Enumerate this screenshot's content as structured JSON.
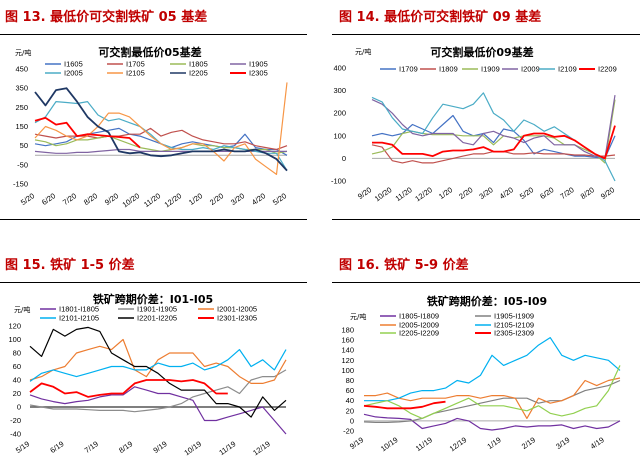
{
  "figures": [
    {
      "label": "图 13. 最低价可交割铁矿 05 基差"
    },
    {
      "label": "图 14. 最低价可交割铁矿 09 基差"
    },
    {
      "label": "图 15. 铁矿 1-5 价差"
    },
    {
      "label": "图 16. 铁矿 5-9 价差"
    }
  ],
  "chart_data": [
    {
      "type": "line",
      "title": "可交割最低价05基差",
      "ylabel": "元/吨",
      "ylim": [
        -150,
        450
      ],
      "yticks": [
        450,
        350,
        250,
        150,
        50,
        -50,
        -150
      ],
      "xticks": [
        "5/20",
        "6/20",
        "7/20",
        "8/20",
        "9/20",
        "10/20",
        "11/20",
        "12/20",
        "1/20",
        "2/20",
        "3/20",
        "4/20",
        "5/20"
      ],
      "grid": false,
      "legend": "top",
      "series": [
        {
          "name": "I1605",
          "color": "#4472c4",
          "values": [
            60,
            50,
            60,
            70,
            100,
            110,
            120,
            130,
            140,
            110,
            100,
            80,
            60,
            40,
            60,
            70,
            60,
            50,
            40,
            50,
            110,
            40,
            30,
            30,
            0
          ]
        },
        {
          "name": "I1705",
          "color": "#c0504d",
          "values": [
            110,
            100,
            90,
            100,
            100,
            100,
            90,
            100,
            100,
            110,
            110,
            140,
            100,
            120,
            130,
            100,
            80,
            70,
            60,
            60,
            70,
            50,
            40,
            30,
            50
          ]
        },
        {
          "name": "I1805",
          "color": "#9bbb59",
          "values": [
            80,
            70,
            50,
            60,
            80,
            80,
            90,
            100,
            80,
            60,
            40,
            30,
            20,
            30,
            40,
            60,
            50,
            50,
            40,
            40,
            30,
            30,
            30,
            10,
            20
          ]
        },
        {
          "name": "I1905",
          "color": "#8064a2",
          "values": [
            20,
            15,
            10,
            10,
            15,
            15,
            20,
            25,
            30,
            30,
            20,
            20,
            20,
            20,
            20,
            20,
            20,
            20,
            20,
            20,
            20,
            20,
            20,
            20,
            20
          ]
        },
        {
          "name": "I2005",
          "color": "#4bacc6",
          "values": [
            170,
            200,
            280,
            275,
            270,
            280,
            210,
            180,
            190,
            170,
            150,
            110,
            60,
            40,
            30,
            30,
            40,
            30,
            50,
            40,
            30,
            20,
            10,
            10,
            -80
          ]
        },
        {
          "name": "I2105",
          "color": "#f79646",
          "values": [
            90,
            150,
            130,
            100,
            80,
            100,
            150,
            220,
            220,
            200,
            150,
            100,
            60,
            30,
            40,
            60,
            60,
            20,
            -30,
            40,
            60,
            -20,
            -60,
            -100,
            380
          ]
        },
        {
          "name": "I2205",
          "color": "#1f3864",
          "values": [
            330,
            260,
            340,
            350,
            280,
            200,
            150,
            120,
            20,
            10,
            15,
            0,
            -5,
            0,
            10,
            20,
            20,
            20,
            30,
            20,
            20,
            30,
            10,
            -20,
            -80
          ]
        },
        {
          "name": "I2305",
          "color": "#ff0000",
          "values": [
            180,
            195,
            160,
            170,
            100,
            110,
            105,
            100,
            95,
            90,
            40,
            null,
            null,
            null,
            null,
            null,
            null,
            null,
            null,
            null,
            null,
            null,
            null,
            null,
            null
          ]
        }
      ]
    },
    {
      "type": "line",
      "title": "可交割最低价09基差",
      "ylabel": "元/吨",
      "ylim": [
        -100,
        400
      ],
      "yticks": [
        400,
        300,
        200,
        100,
        0,
        -100
      ],
      "xticks": [
        "9/20",
        "10/20",
        "11/20",
        "12/20",
        "1/20",
        "2/20",
        "3/20",
        "4/20",
        "5/20",
        "6/20",
        "7/20",
        "8/20",
        "9/20"
      ],
      "grid": false,
      "legend": "top",
      "series": [
        {
          "name": "I1709",
          "color": "#4472c4",
          "values": [
            100,
            110,
            100,
            110,
            150,
            130,
            110,
            150,
            190,
            120,
            100,
            110,
            70,
            130,
            120,
            80,
            20,
            40,
            30,
            20,
            10,
            10,
            5,
            0,
            100
          ]
        },
        {
          "name": "I1809",
          "color": "#c0504d",
          "values": [
            60,
            50,
            -10,
            -20,
            -10,
            -20,
            -20,
            -10,
            0,
            10,
            20,
            20,
            30,
            30,
            20,
            20,
            25,
            20,
            20,
            20,
            15,
            15,
            10,
            10,
            15
          ]
        },
        {
          "name": "I1909",
          "color": "#9bbb59",
          "values": [
            20,
            30,
            50,
            110,
            120,
            110,
            105,
            105,
            105,
            100,
            100,
            100,
            60,
            100,
            90,
            100,
            100,
            100,
            90,
            60,
            60,
            40,
            20,
            -20,
            260
          ]
        },
        {
          "name": "I2009",
          "color": "#8064a2",
          "values": [
            260,
            240,
            200,
            150,
            110,
            100,
            110,
            110,
            110,
            70,
            60,
            110,
            120,
            100,
            90,
            70,
            90,
            100,
            60,
            60,
            60,
            30,
            10,
            0,
            280
          ]
        },
        {
          "name": "I2109",
          "color": "#4bacc6",
          "values": [
            270,
            250,
            180,
            130,
            120,
            110,
            180,
            240,
            230,
            220,
            240,
            290,
            200,
            170,
            120,
            170,
            150,
            120,
            140,
            110,
            80,
            50,
            20,
            -10,
            -100
          ]
        },
        {
          "name": "I2209",
          "color": "#ff0000",
          "values": [
            70,
            70,
            60,
            20,
            20,
            20,
            10,
            30,
            35,
            35,
            40,
            50,
            30,
            30,
            40,
            100,
            110,
            110,
            95,
            100,
            80,
            50,
            20,
            0,
            145
          ]
        }
      ]
    },
    {
      "type": "line",
      "title": "铁矿跨期价差：I01-I05",
      "ylabel": "元/吨",
      "ylim": [
        -40,
        120
      ],
      "yticks": [
        120,
        100,
        80,
        60,
        40,
        20,
        0,
        -20,
        -40
      ],
      "xticks": [
        "5/19",
        "6/19",
        "7/19",
        "8/19",
        "9/19",
        "10/19",
        "11/19",
        "12/19"
      ],
      "grid": false,
      "legend": "top",
      "series": [
        {
          "name": "I1801-I1805",
          "color": "#7030a0",
          "values": [
            18,
            12,
            8,
            5,
            8,
            10,
            15,
            18,
            18,
            30,
            25,
            20,
            20,
            15,
            10,
            -20,
            -20,
            -15,
            -10,
            -5,
            0,
            -20,
            -40
          ]
        },
        {
          "name": "I1901-I1905",
          "color": "#8c8c8c",
          "values": [
            3,
            0,
            -3,
            -3,
            -3,
            -4,
            -5,
            -5,
            -5,
            -7,
            -5,
            -3,
            0,
            5,
            15,
            20,
            25,
            30,
            20,
            40,
            45,
            45,
            55
          ]
        },
        {
          "name": "I2001-I2005",
          "color": "#ed7d31",
          "values": [
            40,
            45,
            55,
            60,
            80,
            85,
            90,
            85,
            100,
            55,
            45,
            70,
            80,
            80,
            80,
            60,
            65,
            60,
            45,
            35,
            35,
            40,
            70
          ]
        },
        {
          "name": "I2101-I2105",
          "color": "#00b0f0",
          "values": [
            38,
            50,
            55,
            50,
            45,
            50,
            55,
            60,
            60,
            55,
            55,
            65,
            60,
            60,
            65,
            55,
            60,
            70,
            85,
            60,
            70,
            55,
            85
          ]
        },
        {
          "name": "I2201-I2205",
          "color": "#000000",
          "values": [
            90,
            75,
            115,
            105,
            115,
            118,
            112,
            80,
            70,
            60,
            60,
            50,
            35,
            25,
            25,
            25,
            5,
            5,
            0,
            -15,
            15,
            -5,
            10
          ]
        },
        {
          "name": "I2301-I2305",
          "color": "#ff0000",
          "values": [
            22,
            35,
            30,
            20,
            22,
            15,
            18,
            20,
            20,
            35,
            40,
            40,
            40,
            38,
            40,
            35,
            20,
            20,
            null,
            null,
            null,
            null,
            null
          ]
        }
      ]
    },
    {
      "type": "line",
      "title": "铁矿跨期价差：I05-I09",
      "ylabel": "元/吨",
      "ylim": [
        -20,
        180
      ],
      "yticks": [
        180,
        160,
        140,
        120,
        100,
        80,
        60,
        40,
        20,
        0,
        -20
      ],
      "xticks": [
        "9/19",
        "10/19",
        "11/19",
        "12/19",
        "1/19",
        "2/19",
        "3/19",
        "4/19"
      ],
      "grid": false,
      "legend": "top",
      "series": [
        {
          "name": "I1805-I1809",
          "color": "#7030a0",
          "values": [
            13,
            8,
            6,
            5,
            3,
            -15,
            -10,
            -5,
            5,
            0,
            -15,
            -18,
            -15,
            -10,
            -12,
            -10,
            -10,
            -8,
            -15,
            -10,
            -15,
            -12,
            0
          ]
        },
        {
          "name": "I1905-I1909",
          "color": "#808080",
          "values": [
            -2,
            -3,
            -3,
            -2,
            0,
            5,
            15,
            20,
            25,
            30,
            35,
            40,
            45,
            45,
            45,
            35,
            40,
            40,
            50,
            60,
            65,
            70,
            80
          ]
        },
        {
          "name": "I2005-I2009",
          "color": "#ed7d31",
          "values": [
            50,
            50,
            55,
            45,
            40,
            45,
            45,
            45,
            50,
            50,
            45,
            50,
            50,
            45,
            5,
            45,
            35,
            40,
            50,
            80,
            70,
            80,
            85
          ]
        },
        {
          "name": "I2105-I2109",
          "color": "#00b0f0",
          "values": [
            40,
            40,
            40,
            45,
            55,
            60,
            60,
            65,
            80,
            75,
            90,
            130,
            110,
            120,
            130,
            150,
            165,
            130,
            120,
            130,
            125,
            120,
            100
          ]
        },
        {
          "name": "I2205-I2209",
          "color": "#92d050",
          "values": [
            30,
            35,
            40,
            30,
            15,
            5,
            15,
            25,
            35,
            45,
            30,
            30,
            30,
            25,
            20,
            30,
            15,
            10,
            15,
            25,
            30,
            60,
            110
          ]
        },
        {
          "name": "I2305-I2309",
          "color": "#ff0000",
          "values": [
            30,
            28,
            25,
            25,
            25,
            28,
            35,
            38,
            null,
            null,
            null,
            null,
            null,
            null,
            null,
            null,
            null,
            null,
            null,
            null,
            null,
            null,
            null
          ]
        }
      ]
    }
  ]
}
